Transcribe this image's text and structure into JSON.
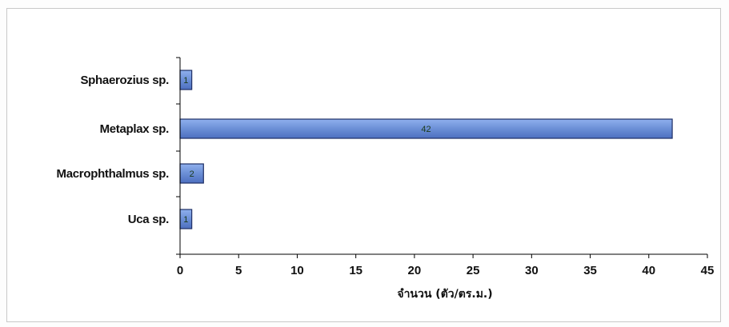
{
  "chart_data": {
    "type": "bar",
    "orientation": "horizontal",
    "categories": [
      "Sphaerozius sp.",
      "Metaplax sp.",
      "Macrophthalmus sp.",
      "Uca sp."
    ],
    "values": [
      1,
      42,
      2,
      1
    ],
    "data_labels": [
      "1",
      "42",
      "2",
      "1"
    ],
    "xlabel": "จำนวน (ตัว/ตร.ม.)",
    "ylabel": "",
    "xlim": [
      0,
      45
    ],
    "x_ticks": [
      0,
      5,
      10,
      15,
      20,
      25,
      30,
      35,
      40,
      45
    ],
    "grid": false,
    "legend": "none",
    "colors": {
      "bar_fill": "#6b8fd6",
      "bar_stroke": "#1f2f66",
      "axis": "#000000"
    }
  }
}
